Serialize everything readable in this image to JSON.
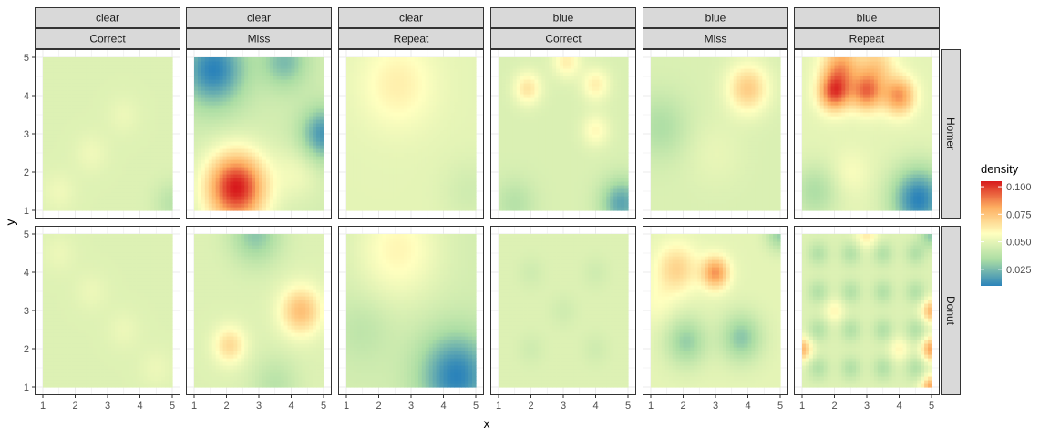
{
  "chart_data": {
    "type": "heatmap",
    "xlabel": "x",
    "ylabel": "y",
    "xlim": [
      1,
      5
    ],
    "ylim": [
      1,
      5
    ],
    "x_ticks": [
      1,
      2,
      3,
      4,
      5
    ],
    "y_ticks": [
      1,
      2,
      3,
      4,
      5
    ],
    "grid": true,
    "legend": {
      "title": "density",
      "position": "right",
      "breaks": [
        0.025,
        0.05,
        0.075,
        0.1
      ],
      "labels": [
        "0.025",
        "0.050",
        "0.075",
        "0.100"
      ],
      "range": [
        0.01,
        0.105
      ],
      "colors": [
        "#2b83ba",
        "#abdda4",
        "#ffffbf",
        "#fdae61",
        "#d7191c"
      ]
    },
    "col_strips": [
      {
        "top": "clear",
        "bottom": "Correct"
      },
      {
        "top": "clear",
        "bottom": "Miss"
      },
      {
        "top": "clear",
        "bottom": "Repeat"
      },
      {
        "top": "blue",
        "bottom": "Correct"
      },
      {
        "top": "blue",
        "bottom": "Miss"
      },
      {
        "top": "blue",
        "bottom": "Repeat"
      }
    ],
    "row_strips": [
      "Homer",
      "Donut"
    ],
    "panels": [
      {
        "row": 0,
        "col": 0,
        "base": 0.048,
        "bumps": [
          {
            "x": 1.5,
            "y": 1.5,
            "amp": 0.005,
            "s": 0.35
          },
          {
            "x": 2.5,
            "y": 2.5,
            "amp": 0.005,
            "s": 0.35
          },
          {
            "x": 3.5,
            "y": 3.5,
            "amp": 0.004,
            "s": 0.35
          },
          {
            "x": 5,
            "y": 1.2,
            "amp": -0.01,
            "s": 0.4
          }
        ]
      },
      {
        "row": 0,
        "col": 1,
        "base": 0.045,
        "bumps": [
          {
            "x": 2.3,
            "y": 1.6,
            "amp": 0.06,
            "s": 0.65
          },
          {
            "x": 1.6,
            "y": 4.7,
            "amp": -0.035,
            "s": 0.7
          },
          {
            "x": 5,
            "y": 3.0,
            "amp": -0.03,
            "s": 0.5
          },
          {
            "x": 3.8,
            "y": 4.9,
            "amp": -0.02,
            "s": 0.5
          },
          {
            "x": 4.2,
            "y": 2.0,
            "amp": 0.008,
            "s": 0.5
          }
        ]
      },
      {
        "row": 0,
        "col": 2,
        "base": 0.05,
        "bumps": [
          {
            "x": 2.6,
            "y": 4.3,
            "amp": 0.012,
            "s": 0.8
          },
          {
            "x": 4.8,
            "y": 1.5,
            "amp": -0.006,
            "s": 0.6
          }
        ]
      },
      {
        "row": 0,
        "col": 3,
        "base": 0.047,
        "bumps": [
          {
            "x": 1.9,
            "y": 4.2,
            "amp": 0.018,
            "s": 0.3
          },
          {
            "x": 3.1,
            "y": 4.9,
            "amp": 0.015,
            "s": 0.3
          },
          {
            "x": 4.0,
            "y": 4.3,
            "amp": 0.015,
            "s": 0.3
          },
          {
            "x": 4.0,
            "y": 3.1,
            "amp": 0.012,
            "s": 0.3
          },
          {
            "x": 4.8,
            "y": 1.2,
            "amp": -0.028,
            "s": 0.45
          },
          {
            "x": 1.5,
            "y": 1.2,
            "amp": -0.01,
            "s": 0.45
          }
        ]
      },
      {
        "row": 0,
        "col": 4,
        "base": 0.047,
        "bumps": [
          {
            "x": 4.0,
            "y": 4.2,
            "amp": 0.025,
            "s": 0.45
          },
          {
            "x": 1.3,
            "y": 3.2,
            "amp": -0.012,
            "s": 0.6
          },
          {
            "x": 3.0,
            "y": 2.5,
            "amp": 0.004,
            "s": 0.6
          }
        ]
      },
      {
        "row": 0,
        "col": 5,
        "base": 0.05,
        "bumps": [
          {
            "x": 2.0,
            "y": 4.1,
            "amp": 0.045,
            "s": 0.35
          },
          {
            "x": 3.0,
            "y": 4.1,
            "amp": 0.038,
            "s": 0.35
          },
          {
            "x": 4.0,
            "y": 4.0,
            "amp": 0.035,
            "s": 0.35
          },
          {
            "x": 2.2,
            "y": 4.8,
            "amp": 0.03,
            "s": 0.4
          },
          {
            "x": 3.3,
            "y": 4.8,
            "amp": 0.02,
            "s": 0.4
          },
          {
            "x": 4.6,
            "y": 1.3,
            "amp": -0.04,
            "s": 0.6
          },
          {
            "x": 1.4,
            "y": 1.5,
            "amp": -0.015,
            "s": 0.5
          },
          {
            "x": 2.5,
            "y": 2.0,
            "amp": 0.006,
            "s": 0.4
          }
        ]
      },
      {
        "row": 1,
        "col": 0,
        "base": 0.048,
        "bumps": [
          {
            "x": 1.5,
            "y": 4.5,
            "amp": 0.004,
            "s": 0.35
          },
          {
            "x": 2.5,
            "y": 3.5,
            "amp": 0.004,
            "s": 0.35
          },
          {
            "x": 3.5,
            "y": 2.5,
            "amp": 0.004,
            "s": 0.35
          },
          {
            "x": 4.5,
            "y": 1.5,
            "amp": 0.004,
            "s": 0.35
          }
        ]
      },
      {
        "row": 1,
        "col": 1,
        "base": 0.048,
        "bumps": [
          {
            "x": 4.3,
            "y": 3.0,
            "amp": 0.028,
            "s": 0.45
          },
          {
            "x": 2.1,
            "y": 2.1,
            "amp": 0.02,
            "s": 0.35
          },
          {
            "x": 2.9,
            "y": 5.0,
            "amp": -0.02,
            "s": 0.55
          },
          {
            "x": 3.5,
            "y": 1.1,
            "amp": -0.01,
            "s": 0.5
          }
        ]
      },
      {
        "row": 1,
        "col": 2,
        "base": 0.045,
        "bumps": [
          {
            "x": 4.4,
            "y": 1.3,
            "amp": -0.035,
            "s": 0.8
          },
          {
            "x": 2.6,
            "y": 4.6,
            "amp": 0.015,
            "s": 0.9
          },
          {
            "x": 1.5,
            "y": 2.5,
            "amp": -0.006,
            "s": 0.6
          }
        ]
      },
      {
        "row": 1,
        "col": 3,
        "base": 0.048,
        "bumps": [
          {
            "x": 2.0,
            "y": 2.0,
            "amp": -0.004,
            "s": 0.3
          },
          {
            "x": 3.0,
            "y": 3.0,
            "amp": -0.004,
            "s": 0.3
          },
          {
            "x": 4.0,
            "y": 4.0,
            "amp": -0.004,
            "s": 0.3
          },
          {
            "x": 2.0,
            "y": 4.0,
            "amp": -0.004,
            "s": 0.3
          },
          {
            "x": 4.0,
            "y": 2.0,
            "amp": -0.004,
            "s": 0.3
          }
        ]
      },
      {
        "row": 1,
        "col": 4,
        "base": 0.05,
        "bumps": [
          {
            "x": 3.0,
            "y": 4.0,
            "amp": 0.035,
            "s": 0.3
          },
          {
            "x": 1.8,
            "y": 4.1,
            "amp": 0.02,
            "s": 0.45
          },
          {
            "x": 2.1,
            "y": 2.2,
            "amp": -0.02,
            "s": 0.45
          },
          {
            "x": 3.8,
            "y": 2.3,
            "amp": -0.022,
            "s": 0.45
          },
          {
            "x": 5.0,
            "y": 5.0,
            "amp": -0.02,
            "s": 0.3
          },
          {
            "x": 1.2,
            "y": 3.2,
            "amp": 0.006,
            "s": 0.4
          }
        ]
      },
      {
        "row": 1,
        "col": 5,
        "base": 0.048,
        "bumps": [
          {
            "x": 1.5,
            "y": 4.5,
            "amp": -0.012,
            "s": 0.22
          },
          {
            "x": 2.5,
            "y": 4.5,
            "amp": -0.012,
            "s": 0.22
          },
          {
            "x": 3.5,
            "y": 4.5,
            "amp": -0.012,
            "s": 0.22
          },
          {
            "x": 4.5,
            "y": 4.5,
            "amp": -0.012,
            "s": 0.22
          },
          {
            "x": 1.5,
            "y": 3.5,
            "amp": -0.012,
            "s": 0.22
          },
          {
            "x": 2.5,
            "y": 3.5,
            "amp": -0.012,
            "s": 0.22
          },
          {
            "x": 3.5,
            "y": 3.5,
            "amp": -0.012,
            "s": 0.22
          },
          {
            "x": 4.5,
            "y": 3.5,
            "amp": -0.012,
            "s": 0.22
          },
          {
            "x": 1.5,
            "y": 2.5,
            "amp": -0.012,
            "s": 0.22
          },
          {
            "x": 2.5,
            "y": 2.5,
            "amp": -0.012,
            "s": 0.22
          },
          {
            "x": 3.5,
            "y": 2.5,
            "amp": -0.012,
            "s": 0.22
          },
          {
            "x": 4.5,
            "y": 2.5,
            "amp": -0.012,
            "s": 0.22
          },
          {
            "x": 1.5,
            "y": 1.5,
            "amp": -0.012,
            "s": 0.22
          },
          {
            "x": 2.5,
            "y": 1.5,
            "amp": -0.012,
            "s": 0.22
          },
          {
            "x": 3.5,
            "y": 1.5,
            "amp": -0.012,
            "s": 0.22
          },
          {
            "x": 4.5,
            "y": 1.5,
            "amp": -0.012,
            "s": 0.22
          },
          {
            "x": 1.0,
            "y": 2.0,
            "amp": 0.03,
            "s": 0.22
          },
          {
            "x": 5.0,
            "y": 2.0,
            "amp": 0.035,
            "s": 0.22
          },
          {
            "x": 5.0,
            "y": 3.0,
            "amp": 0.03,
            "s": 0.22
          },
          {
            "x": 5.0,
            "y": 1.0,
            "amp": 0.035,
            "s": 0.22
          },
          {
            "x": 5.0,
            "y": 5.0,
            "amp": -0.02,
            "s": 0.25
          },
          {
            "x": 3.0,
            "y": 5.0,
            "amp": 0.015,
            "s": 0.25
          },
          {
            "x": 2.0,
            "y": 3.0,
            "amp": 0.012,
            "s": 0.22
          },
          {
            "x": 4.0,
            "y": 2.0,
            "amp": 0.012,
            "s": 0.22
          }
        ]
      }
    ]
  }
}
